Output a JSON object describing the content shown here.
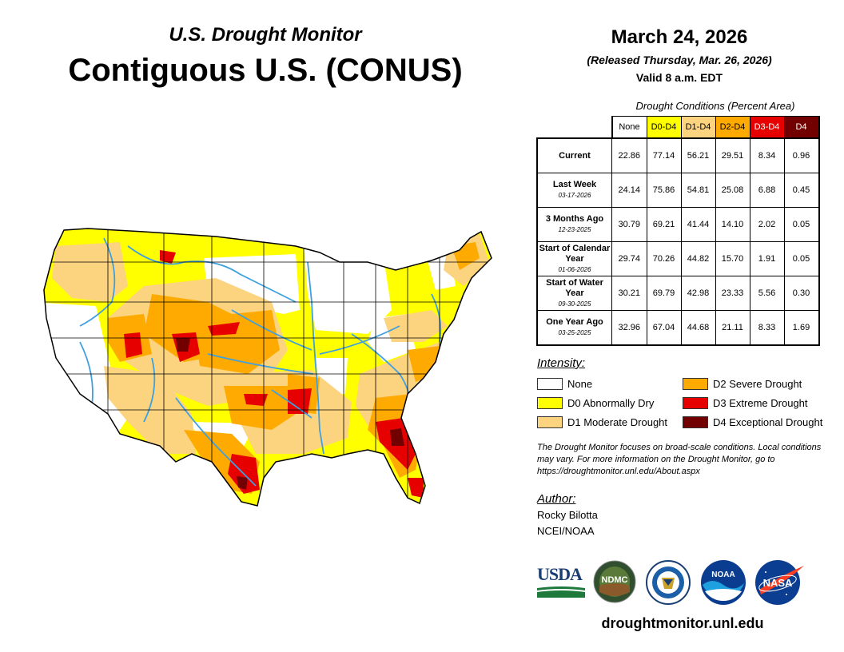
{
  "header": {
    "subtitle": "U.S. Drought Monitor",
    "title": "Contiguous U.S. (CONUS)",
    "date": "March 24, 2026",
    "released": "(Released Thursday, Mar. 26, 2026)",
    "valid": "Valid 8 a.m. EDT"
  },
  "table": {
    "caption": "Drought Conditions (Percent Area)",
    "columns": [
      "None",
      "D0-D4",
      "D1-D4",
      "D2-D4",
      "D3-D4",
      "D4"
    ],
    "column_colors": [
      "#ffffff",
      "#ffff00",
      "#fcd37f",
      "#ffaa00",
      "#e60000",
      "#730000"
    ],
    "rows": [
      {
        "label": "Current",
        "date": "",
        "values": [
          "22.86",
          "77.14",
          "56.21",
          "29.51",
          "8.34",
          "0.96"
        ]
      },
      {
        "label": "Last Week",
        "date": "03-17-2026",
        "values": [
          "24.14",
          "75.86",
          "54.81",
          "25.08",
          "6.88",
          "0.45"
        ]
      },
      {
        "label": "3 Months Ago",
        "date": "12-23-2025",
        "values": [
          "30.79",
          "69.21",
          "41.44",
          "14.10",
          "2.02",
          "0.05"
        ]
      },
      {
        "label": "Start of Calendar Year",
        "date": "01-06-2026",
        "values": [
          "29.74",
          "70.26",
          "44.82",
          "15.70",
          "1.91",
          "0.05"
        ]
      },
      {
        "label": "Start of Water Year",
        "date": "09-30-2025",
        "values": [
          "30.21",
          "69.79",
          "42.98",
          "23.33",
          "5.56",
          "0.30"
        ]
      },
      {
        "label": "One Year Ago",
        "date": "03-25-2025",
        "values": [
          "32.96",
          "67.04",
          "44.68",
          "21.11",
          "8.33",
          "1.69"
        ]
      }
    ]
  },
  "legend": {
    "heading": "Intensity:",
    "items": [
      {
        "label": "None",
        "color": "#ffffff"
      },
      {
        "label": "D0 Abnormally Dry",
        "color": "#ffff00"
      },
      {
        "label": "D1 Moderate Drought",
        "color": "#fcd37f"
      },
      {
        "label": "D2 Severe Drought",
        "color": "#ffaa00"
      },
      {
        "label": "D3 Extreme Drought",
        "color": "#e60000"
      },
      {
        "label": "D4 Exceptional Drought",
        "color": "#730000"
      }
    ]
  },
  "note": "The Drought Monitor focuses on broad-scale conditions. Local conditions may vary. For more information on the Drought Monitor, go to https://droughtmonitor.unl.edu/About.aspx",
  "author": {
    "heading": "Author:",
    "name": "Rocky Bilotta",
    "org": "NCEI/NOAA"
  },
  "logos": {
    "usda": "USDA",
    "ndmc": "NDMC",
    "noaa": "NOAA",
    "nasa": "NASA"
  },
  "url": "droughtmonitor.unl.edu",
  "map": {
    "region": "Contiguous U.S.",
    "river_color": "#3fa0e0"
  }
}
